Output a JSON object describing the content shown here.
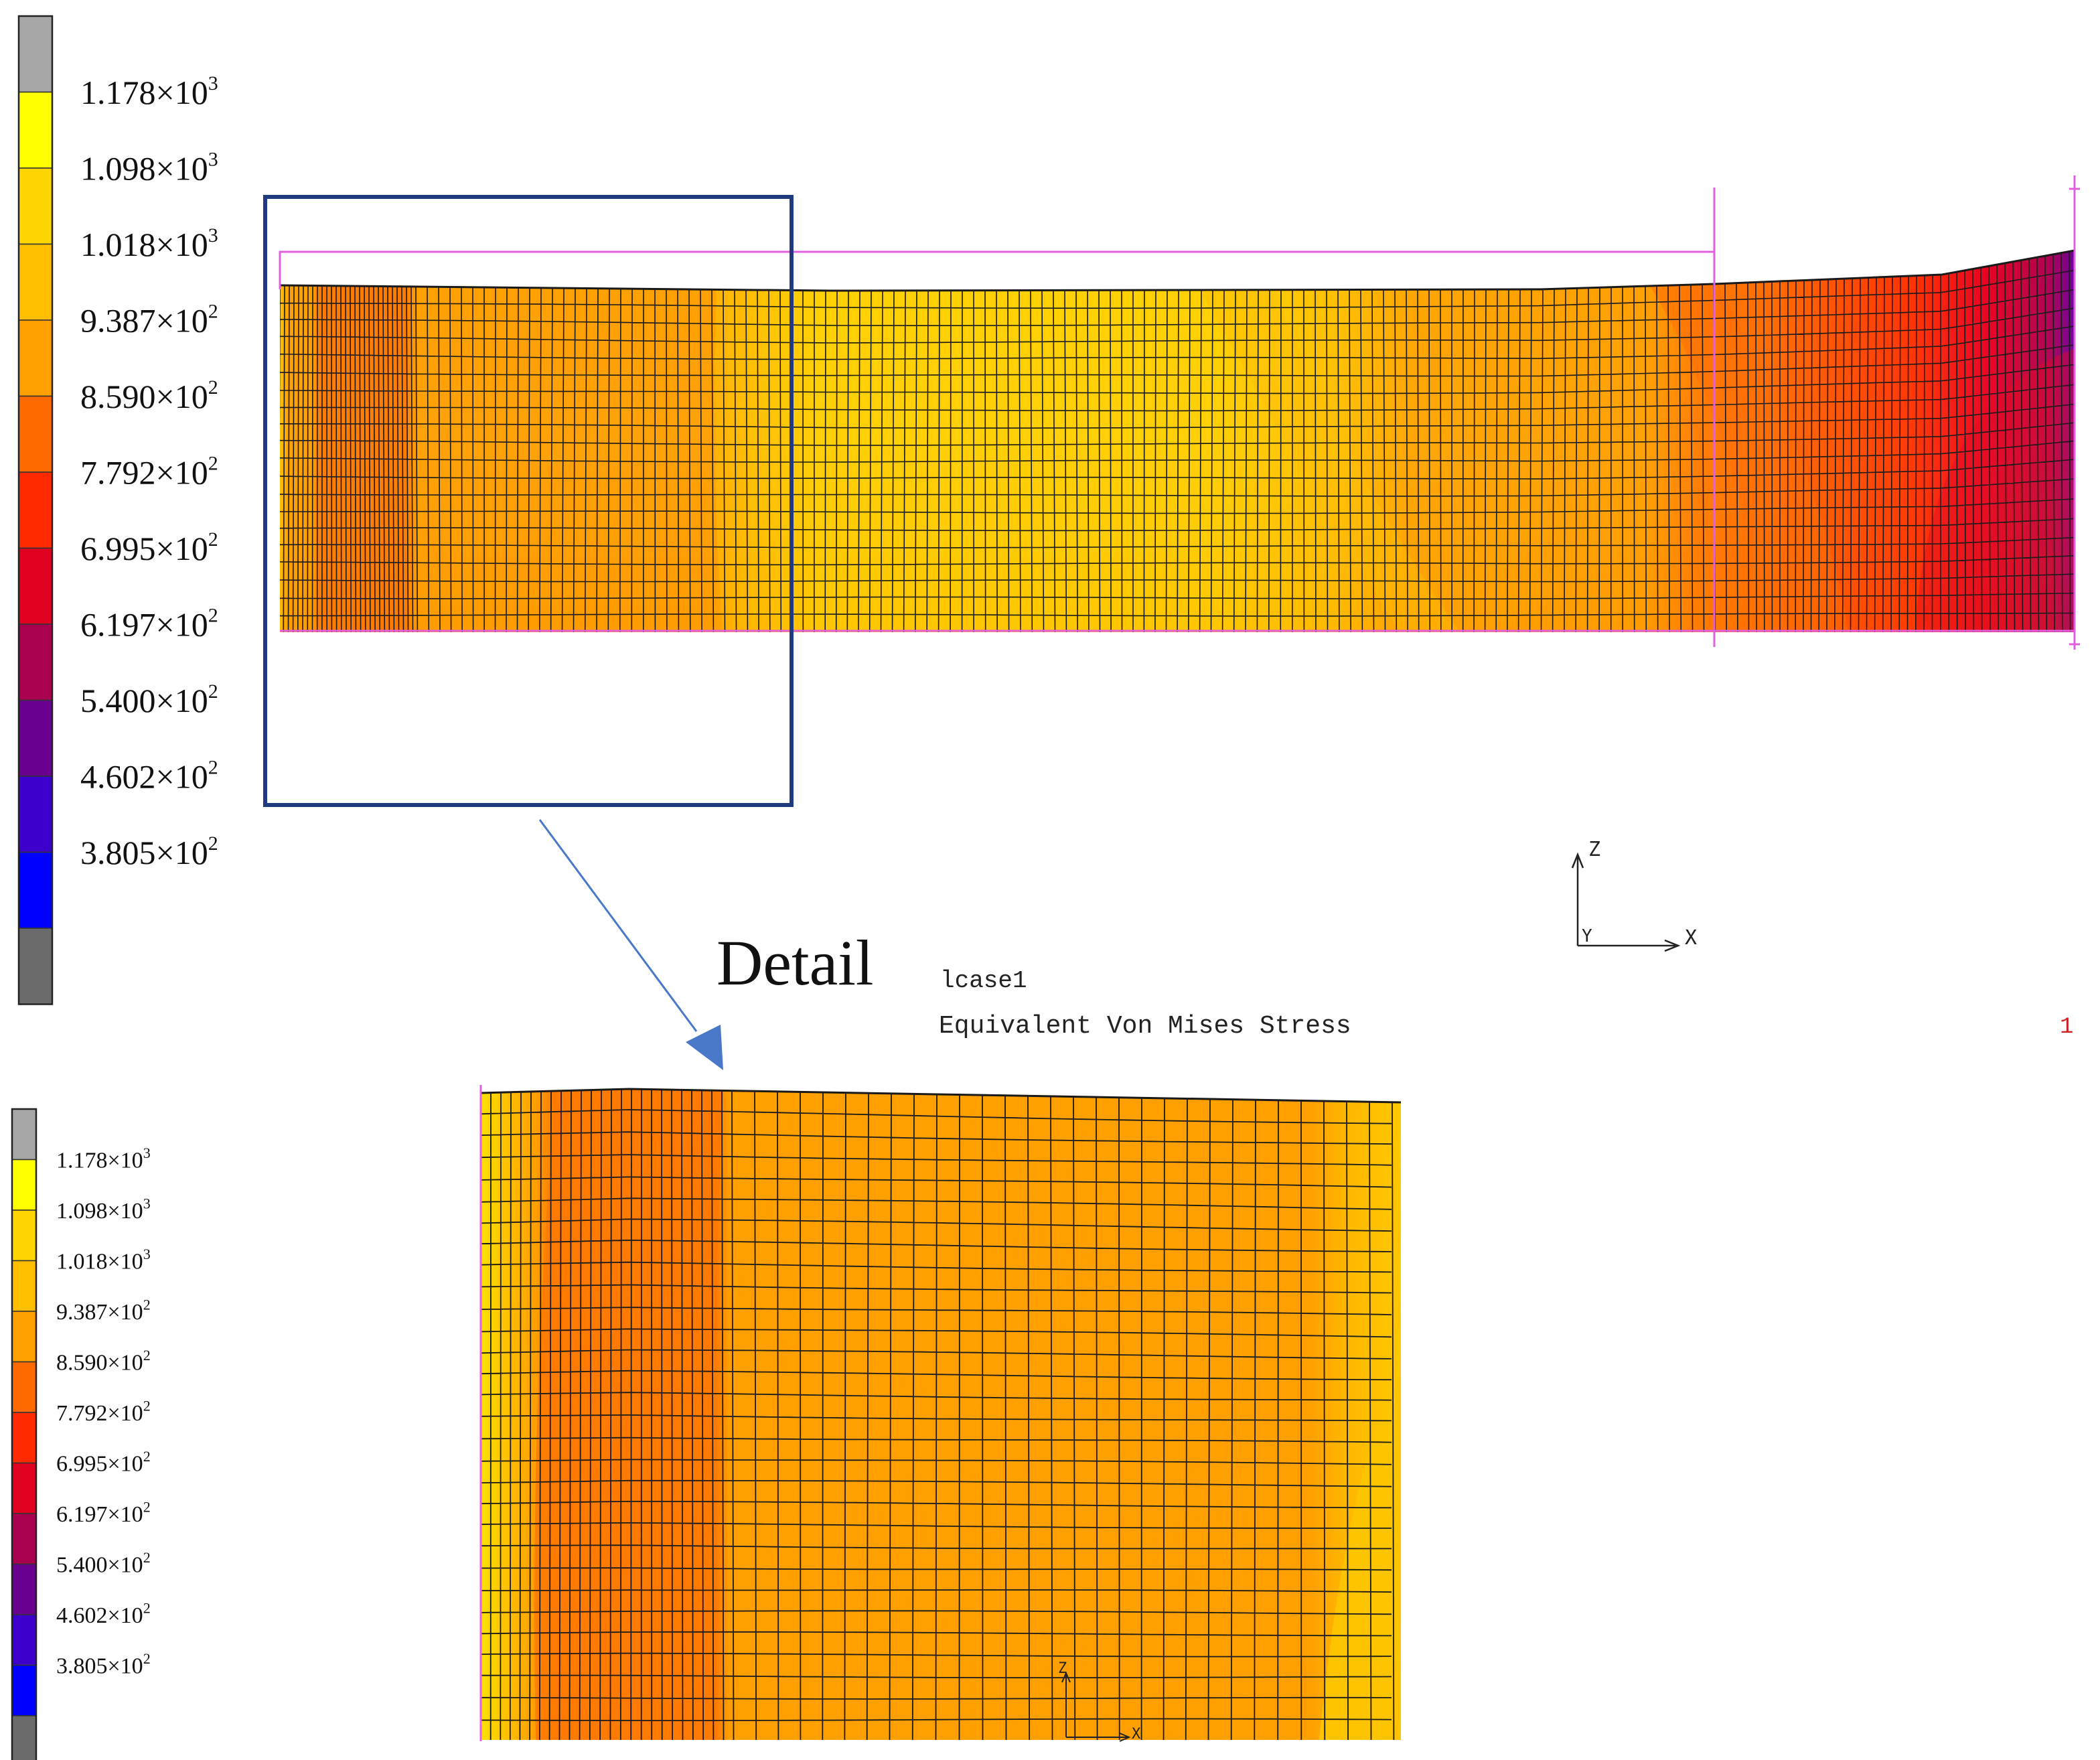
{
  "legend_main": {
    "labels": [
      {
        "mant": "1.178",
        "exp": "3"
      },
      {
        "mant": "1.098",
        "exp": "3"
      },
      {
        "mant": "1.018",
        "exp": "3"
      },
      {
        "mant": "9.387",
        "exp": "2"
      },
      {
        "mant": "8.590",
        "exp": "2"
      },
      {
        "mant": "7.792",
        "exp": "2"
      },
      {
        "mant": "6.995",
        "exp": "2"
      },
      {
        "mant": "6.197",
        "exp": "2"
      },
      {
        "mant": "5.400",
        "exp": "2"
      },
      {
        "mant": "4.602",
        "exp": "2"
      },
      {
        "mant": "3.805",
        "exp": "2"
      }
    ],
    "colors": [
      "#a6a6a6",
      "#ffff00",
      "#ffd500",
      "#ffbf00",
      "#ff9f00",
      "#ff6a00",
      "#ff2a00",
      "#e00020",
      "#aa0050",
      "#6a0090",
      "#3d00cc",
      "#0000ff",
      "#6b6b6b"
    ]
  },
  "legend_detail": {
    "labels": [
      {
        "mant": "1.178",
        "exp": "3"
      },
      {
        "mant": "1.098",
        "exp": "3"
      },
      {
        "mant": "1.018",
        "exp": "3"
      },
      {
        "mant": "9.387",
        "exp": "2"
      },
      {
        "mant": "8.590",
        "exp": "2"
      },
      {
        "mant": "7.792",
        "exp": "2"
      },
      {
        "mant": "6.995",
        "exp": "2"
      },
      {
        "mant": "6.197",
        "exp": "2"
      },
      {
        "mant": "5.400",
        "exp": "2"
      },
      {
        "mant": "4.602",
        "exp": "2"
      },
      {
        "mant": "3.805",
        "exp": "2"
      }
    ]
  },
  "times_symbol": "×10",
  "detail_label": "Detail",
  "lcase_label": "lcase1",
  "result_label": "Equivalent Von Mises Stress",
  "frame_number": "1",
  "axes": {
    "z": "Z",
    "x": "X",
    "y": "Y"
  },
  "colors": {
    "mesh_line": "#1a1a1a",
    "boundary": "#e060e0",
    "zoom_box": "#203a80",
    "arrow": "#4a78c8",
    "frame_number": "#d02020"
  }
}
